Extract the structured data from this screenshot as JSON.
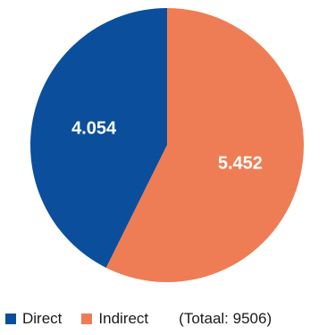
{
  "chart_data": {
    "type": "pie",
    "title": "",
    "slices": [
      {
        "label": "Direct",
        "value": 4054,
        "display": "4.054",
        "color": "#0b4f9c"
      },
      {
        "label": "Indirect",
        "value": 5452,
        "display": "5.452",
        "color": "#ee7d55"
      }
    ],
    "total_text": "(Totaal: 9506)",
    "legend_position": "bottom"
  }
}
